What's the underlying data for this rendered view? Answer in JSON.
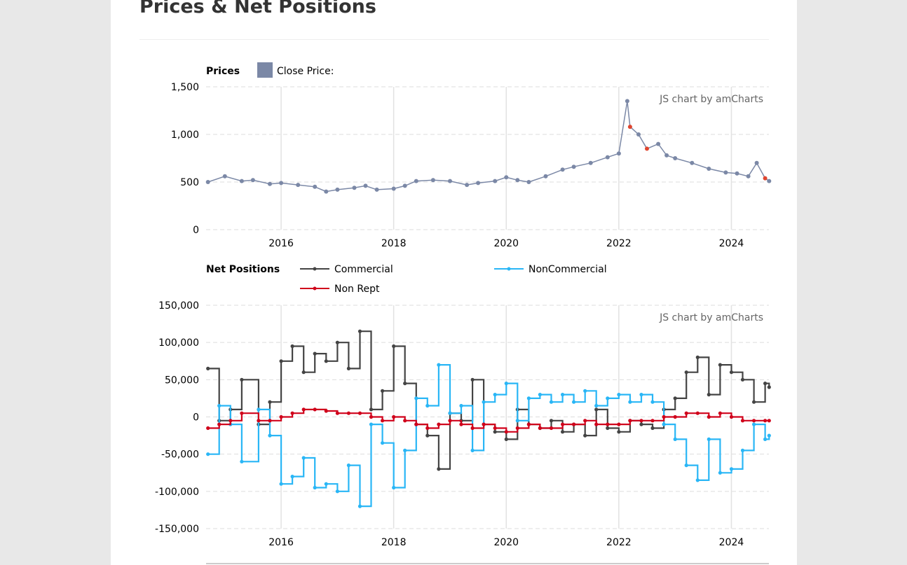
{
  "page": {
    "title": "Prices & Net Positions"
  },
  "charts": {
    "prices": {
      "legend_title": "Prices",
      "credit": "JS chart by amCharts"
    },
    "positions": {
      "legend_title": "Net Positions",
      "credit": "JS chart by amCharts"
    }
  },
  "chart_data": [
    {
      "type": "scatter",
      "id": "prices",
      "legend_title": "Prices",
      "x_ticks": [
        "2016",
        "2018",
        "2020",
        "2022",
        "2024"
      ],
      "xlim": [
        "2014-09",
        "2024-09"
      ],
      "y_ticks": [
        "1,500",
        "1,000",
        "500",
        "0"
      ],
      "ylim": [
        0,
        1500
      ],
      "grid": true,
      "legend_position": "top-left",
      "series": [
        {
          "name": "Close Price:",
          "color": "#7b88a6",
          "down_color": "#e0452f",
          "x": [
            2014.7,
            2015.0,
            2015.3,
            2015.5,
            2015.8,
            2016.0,
            2016.3,
            2016.6,
            2016.8,
            2017.0,
            2017.3,
            2017.5,
            2017.7,
            2018.0,
            2018.2,
            2018.4,
            2018.7,
            2019.0,
            2019.3,
            2019.5,
            2019.8,
            2020.0,
            2020.2,
            2020.4,
            2020.7,
            2021.0,
            2021.2,
            2021.5,
            2021.8,
            2022.0,
            2022.15,
            2022.2,
            2022.35,
            2022.5,
            2022.7,
            2022.85,
            2023.0,
            2023.3,
            2023.6,
            2023.9,
            2024.1,
            2024.3,
            2024.45,
            2024.6,
            2024.67
          ],
          "y": [
            500,
            560,
            510,
            520,
            480,
            490,
            470,
            450,
            400,
            420,
            440,
            460,
            420,
            430,
            460,
            510,
            520,
            510,
            470,
            490,
            510,
            550,
            520,
            500,
            560,
            630,
            660,
            700,
            760,
            800,
            1350,
            1080,
            1000,
            850,
            900,
            780,
            750,
            700,
            640,
            600,
            590,
            560,
            700,
            540,
            510
          ]
        }
      ]
    },
    {
      "type": "line",
      "id": "positions",
      "legend_title": "Net Positions",
      "x_ticks": [
        "2016",
        "2018",
        "2020",
        "2022",
        "2024"
      ],
      "xlim": [
        "2014-09",
        "2024-09"
      ],
      "y_ticks": [
        "150,000",
        "100,000",
        "50,000",
        "0",
        "-50,000",
        "-100,000",
        "-150,000"
      ],
      "ylim": [
        -150000,
        150000
      ],
      "grid": true,
      "legend_position": "top-left",
      "x": [
        2014.7,
        2014.9,
        2015.1,
        2015.3,
        2015.6,
        2015.8,
        2016.0,
        2016.2,
        2016.4,
        2016.6,
        2016.8,
        2017.0,
        2017.2,
        2017.4,
        2017.6,
        2017.8,
        2018.0,
        2018.2,
        2018.4,
        2018.6,
        2018.8,
        2019.0,
        2019.2,
        2019.4,
        2019.6,
        2019.8,
        2020.0,
        2020.2,
        2020.4,
        2020.6,
        2020.8,
        2021.0,
        2021.2,
        2021.4,
        2021.6,
        2021.8,
        2022.0,
        2022.2,
        2022.4,
        2022.6,
        2022.8,
        2023.0,
        2023.2,
        2023.4,
        2023.6,
        2023.8,
        2024.0,
        2024.2,
        2024.4,
        2024.6,
        2024.67
      ],
      "series": [
        {
          "name": "Commercial",
          "color": "#444444",
          "values": [
            65000,
            -5000,
            10000,
            50000,
            -10000,
            20000,
            75000,
            95000,
            60000,
            85000,
            75000,
            100000,
            65000,
            115000,
            10000,
            35000,
            95000,
            45000,
            -10000,
            -25000,
            -70000,
            5000,
            -5000,
            50000,
            -10000,
            -20000,
            -30000,
            10000,
            -10000,
            -15000,
            -5000,
            -20000,
            -10000,
            -25000,
            10000,
            -15000,
            -20000,
            -5000,
            -10000,
            -15000,
            10000,
            25000,
            60000,
            80000,
            30000,
            70000,
            60000,
            50000,
            20000,
            45000,
            40000
          ]
        },
        {
          "name": "NonCommercial",
          "color": "#29b6f6",
          "values": [
            -50000,
            15000,
            -10000,
            -60000,
            10000,
            -25000,
            -90000,
            -80000,
            -55000,
            -95000,
            -90000,
            -100000,
            -65000,
            -120000,
            -10000,
            -35000,
            -95000,
            -45000,
            25000,
            15000,
            70000,
            5000,
            15000,
            -45000,
            20000,
            30000,
            45000,
            -5000,
            25000,
            30000,
            20000,
            30000,
            20000,
            35000,
            15000,
            25000,
            30000,
            20000,
            30000,
            20000,
            -10000,
            -30000,
            -65000,
            -85000,
            -30000,
            -75000,
            -70000,
            -45000,
            -10000,
            -30000,
            -25000
          ]
        },
        {
          "name": "Non Rept",
          "color": "#d0021b",
          "values": [
            -15000,
            -10000,
            -5000,
            5000,
            -5000,
            -5000,
            0,
            5000,
            10000,
            10000,
            8000,
            5000,
            5000,
            5000,
            0,
            -5000,
            0,
            -5000,
            -10000,
            -15000,
            -10000,
            -5000,
            -10000,
            -15000,
            -10000,
            -15000,
            -20000,
            -15000,
            -10000,
            -15000,
            -15000,
            -10000,
            -10000,
            -5000,
            -10000,
            -10000,
            -10000,
            -5000,
            -5000,
            -5000,
            0,
            0,
            5000,
            5000,
            0,
            5000,
            0,
            -5000,
            -5000,
            -5000,
            -5000
          ]
        }
      ]
    }
  ]
}
